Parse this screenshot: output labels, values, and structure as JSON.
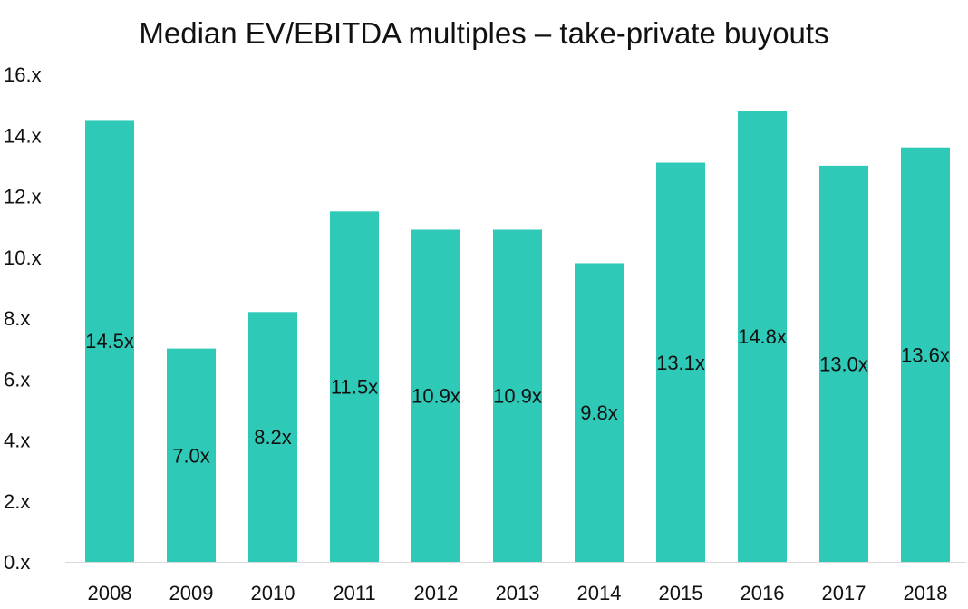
{
  "chart_data": {
    "type": "bar",
    "title": "Median EV/EBITDA multiples – take-private buyouts",
    "categories": [
      "2008",
      "2009",
      "2010",
      "2011",
      "2012",
      "2013",
      "2014",
      "2015",
      "2016",
      "2017",
      "2018"
    ],
    "values": [
      14.5,
      7.0,
      8.2,
      11.5,
      10.9,
      10.9,
      9.8,
      13.1,
      14.8,
      13.0,
      13.6
    ],
    "value_labels": [
      "14.5x",
      "7.0x",
      "8.2x",
      "11.5x",
      "10.9x",
      "10.9x",
      "9.8x",
      "13.1x",
      "14.8x",
      "13.0x",
      "13.6x"
    ],
    "y_ticks": [
      0,
      2,
      4,
      6,
      8,
      10,
      12,
      14,
      16
    ],
    "y_tick_labels": [
      "0.x",
      "2.x",
      "4.x",
      "6.x",
      "8.x",
      "10.x",
      "12.x",
      "14.x",
      "16.x"
    ],
    "ylim": [
      0,
      16
    ],
    "xlabel": "",
    "ylabel": "",
    "grid": false,
    "legend": "none",
    "bar_color": "#2ec9b7",
    "text_color": "#111111"
  }
}
